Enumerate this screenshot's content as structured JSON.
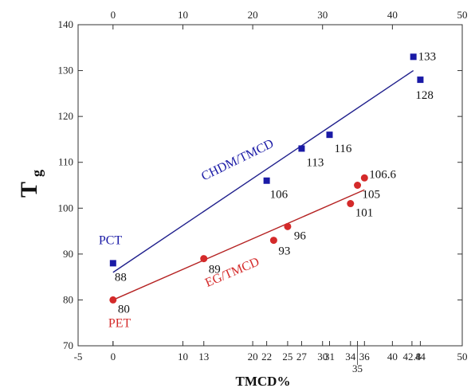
{
  "chart_data": {
    "type": "scatter",
    "xlabel": "TMCD%",
    "ylabel": "T",
    "ylabel_sub": "g",
    "xlim": [
      -5,
      50
    ],
    "ylim": [
      70,
      140
    ],
    "x_ticks": [
      -5,
      0,
      10,
      20,
      30,
      40,
      50
    ],
    "x_top_ticks": [
      0,
      10,
      20,
      30,
      40,
      50
    ],
    "y_ticks": [
      70,
      80,
      90,
      100,
      110,
      120,
      130,
      140
    ],
    "x_extra_ticks": [
      {
        "x": 0,
        "label": "0"
      },
      {
        "x": 13,
        "label": "13"
      },
      {
        "x": 22,
        "label": "22"
      },
      {
        "x": 25,
        "label": "25"
      },
      {
        "x": 27,
        "label": "27"
      },
      {
        "x": 31,
        "label": "31"
      },
      {
        "x": 34,
        "label": "34"
      },
      {
        "x": 35,
        "label": "35"
      },
      {
        "x": 36,
        "label": "36"
      },
      {
        "x": 42.8,
        "label": "42.8"
      },
      {
        "x": 44,
        "label": "44"
      }
    ],
    "series": [
      {
        "name": "CHDM/TMCD",
        "color": "#1a1aa6",
        "line_color": "#1f1f8c",
        "marker": "square",
        "start_label": "PCT",
        "points": [
          {
            "x": 0,
            "y": 88,
            "label": "88"
          },
          {
            "x": 22,
            "y": 106,
            "label": "106"
          },
          {
            "x": 27,
            "y": 113,
            "label": "113"
          },
          {
            "x": 31,
            "y": 116,
            "label": "116"
          },
          {
            "x": 43,
            "y": 133,
            "label": "133"
          },
          {
            "x": 44,
            "y": 128,
            "label": "128"
          }
        ],
        "fit": [
          [
            0,
            86
          ],
          [
            43,
            130
          ]
        ]
      },
      {
        "name": "EG/TMCD",
        "color": "#d42a2a",
        "line_color": "#b52222",
        "marker": "circle",
        "start_label": "PET",
        "points": [
          {
            "x": 0,
            "y": 80,
            "label": "80"
          },
          {
            "x": 13,
            "y": 89,
            "label": "89"
          },
          {
            "x": 23,
            "y": 93,
            "label": "93"
          },
          {
            "x": 25,
            "y": 96,
            "label": "96"
          },
          {
            "x": 34,
            "y": 101,
            "label": "101"
          },
          {
            "x": 35,
            "y": 105,
            "label": "105"
          },
          {
            "x": 36,
            "y": 106.6,
            "label": "106.6"
          }
        ],
        "fit": [
          [
            0,
            80
          ],
          [
            36,
            104
          ]
        ]
      }
    ]
  }
}
